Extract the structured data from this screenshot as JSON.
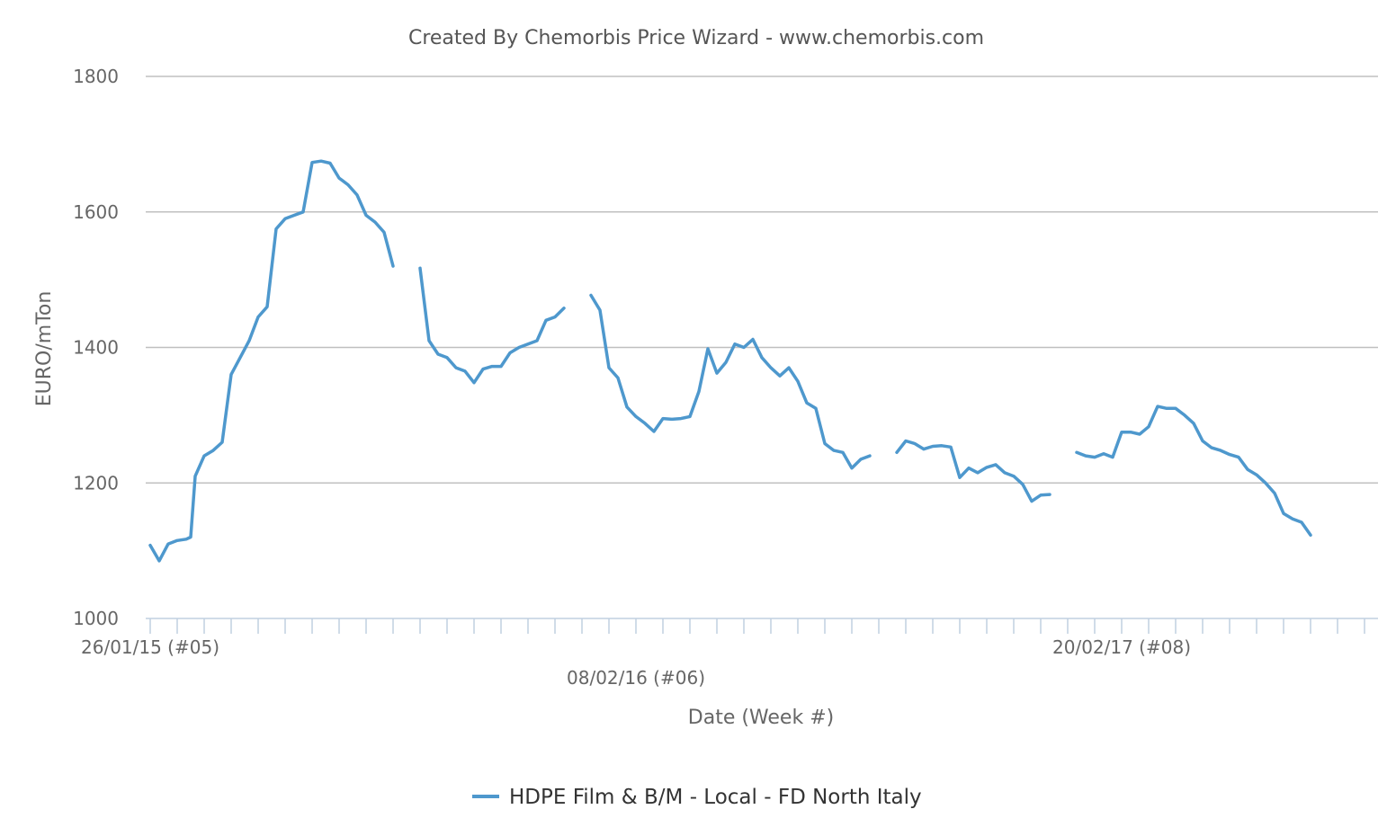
{
  "chart_data": {
    "type": "line",
    "title": "Created By Chemorbis Price Wizard - www.chemorbis.com",
    "xlabel": "Date (Week #)",
    "ylabel": "EURO/mTon",
    "ylim": [
      1000,
      1800
    ],
    "yticks": [
      "1000",
      "1200",
      "1400",
      "1600",
      "1800"
    ],
    "grid": true,
    "legend": "bottom-center",
    "x_tick_labels": [
      {
        "label": "26/01/15 (#05)",
        "week": 0
      },
      {
        "label": "08/02/16 (#06)",
        "week": 54
      },
      {
        "label": "20/02/17 (#08)",
        "week": 108
      }
    ],
    "x_max_week": 136,
    "series": [
      {
        "name": "HDPE Film & B/M - Local - FD North Italy",
        "color": "#4e98cd",
        "segments": [
          [
            [
              0,
              1108
            ],
            [
              1,
              1085
            ],
            [
              2,
              1110
            ],
            [
              3,
              1115
            ],
            [
              4,
              1117
            ],
            [
              4.5,
              1120
            ],
            [
              5,
              1210
            ],
            [
              6,
              1240
            ],
            [
              7,
              1248
            ],
            [
              8,
              1260
            ],
            [
              9,
              1360
            ],
            [
              10,
              1385
            ],
            [
              11,
              1410
            ],
            [
              12,
              1445
            ],
            [
              13,
              1460
            ],
            [
              14,
              1575
            ],
            [
              15,
              1590
            ],
            [
              16,
              1595
            ],
            [
              17,
              1600
            ],
            [
              18,
              1673
            ],
            [
              19,
              1675
            ],
            [
              20,
              1672
            ],
            [
              21,
              1650
            ],
            [
              22,
              1640
            ],
            [
              23,
              1625
            ],
            [
              24,
              1595
            ],
            [
              25,
              1585
            ],
            [
              26,
              1570
            ],
            [
              27,
              1520
            ]
          ],
          [
            [
              30,
              1517
            ],
            [
              31,
              1410
            ],
            [
              32,
              1390
            ],
            [
              33,
              1385
            ],
            [
              34,
              1370
            ],
            [
              35,
              1365
            ],
            [
              36,
              1348
            ],
            [
              37,
              1368
            ],
            [
              38,
              1372
            ],
            [
              39,
              1372
            ],
            [
              40,
              1392
            ],
            [
              41,
              1400
            ],
            [
              42,
              1405
            ],
            [
              43,
              1410
            ],
            [
              44,
              1440
            ],
            [
              45,
              1445
            ],
            [
              46,
              1458
            ]
          ],
          [
            [
              49,
              1477
            ],
            [
              50,
              1455
            ],
            [
              51,
              1370
            ],
            [
              52,
              1355
            ],
            [
              53,
              1312
            ],
            [
              54,
              1298
            ],
            [
              55,
              1288
            ],
            [
              56,
              1276
            ],
            [
              57,
              1295
            ],
            [
              58,
              1294
            ],
            [
              59,
              1295
            ],
            [
              60,
              1298
            ],
            [
              61,
              1335
            ],
            [
              62,
              1398
            ],
            [
              63,
              1362
            ],
            [
              64,
              1378
            ],
            [
              65,
              1405
            ],
            [
              66,
              1400
            ],
            [
              67,
              1412
            ],
            [
              68,
              1385
            ],
            [
              69,
              1370
            ],
            [
              70,
              1358
            ],
            [
              71,
              1370
            ],
            [
              72,
              1350
            ],
            [
              73,
              1318
            ],
            [
              74,
              1310
            ],
            [
              75,
              1258
            ],
            [
              76,
              1248
            ],
            [
              77,
              1245
            ],
            [
              78,
              1222
            ],
            [
              79,
              1235
            ],
            [
              80,
              1240
            ]
          ],
          [
            [
              83,
              1245
            ],
            [
              84,
              1262
            ],
            [
              85,
              1258
            ],
            [
              86,
              1250
            ],
            [
              87,
              1254
            ],
            [
              88,
              1255
            ],
            [
              89,
              1253
            ],
            [
              90,
              1208
            ],
            [
              91,
              1222
            ],
            [
              92,
              1215
            ],
            [
              93,
              1223
            ],
            [
              94,
              1227
            ],
            [
              95,
              1215
            ],
            [
              96,
              1210
            ],
            [
              97,
              1198
            ],
            [
              98,
              1173
            ],
            [
              99,
              1182
            ],
            [
              100,
              1183
            ]
          ],
          [
            [
              103,
              1245
            ],
            [
              104,
              1240
            ],
            [
              105,
              1238
            ],
            [
              106,
              1243
            ],
            [
              107,
              1238
            ],
            [
              108,
              1275
            ],
            [
              109,
              1275
            ],
            [
              110,
              1272
            ],
            [
              111,
              1283
            ],
            [
              112,
              1313
            ],
            [
              113,
              1310
            ],
            [
              114,
              1310
            ],
            [
              115,
              1300
            ],
            [
              116,
              1288
            ],
            [
              117,
              1262
            ],
            [
              118,
              1252
            ],
            [
              119,
              1248
            ],
            [
              120,
              1242
            ],
            [
              121,
              1238
            ],
            [
              122,
              1220
            ],
            [
              123,
              1212
            ],
            [
              124,
              1200
            ],
            [
              125,
              1185
            ],
            [
              126,
              1155
            ],
            [
              127,
              1147
            ],
            [
              128,
              1142
            ],
            [
              129,
              1123
            ]
          ]
        ]
      }
    ]
  }
}
